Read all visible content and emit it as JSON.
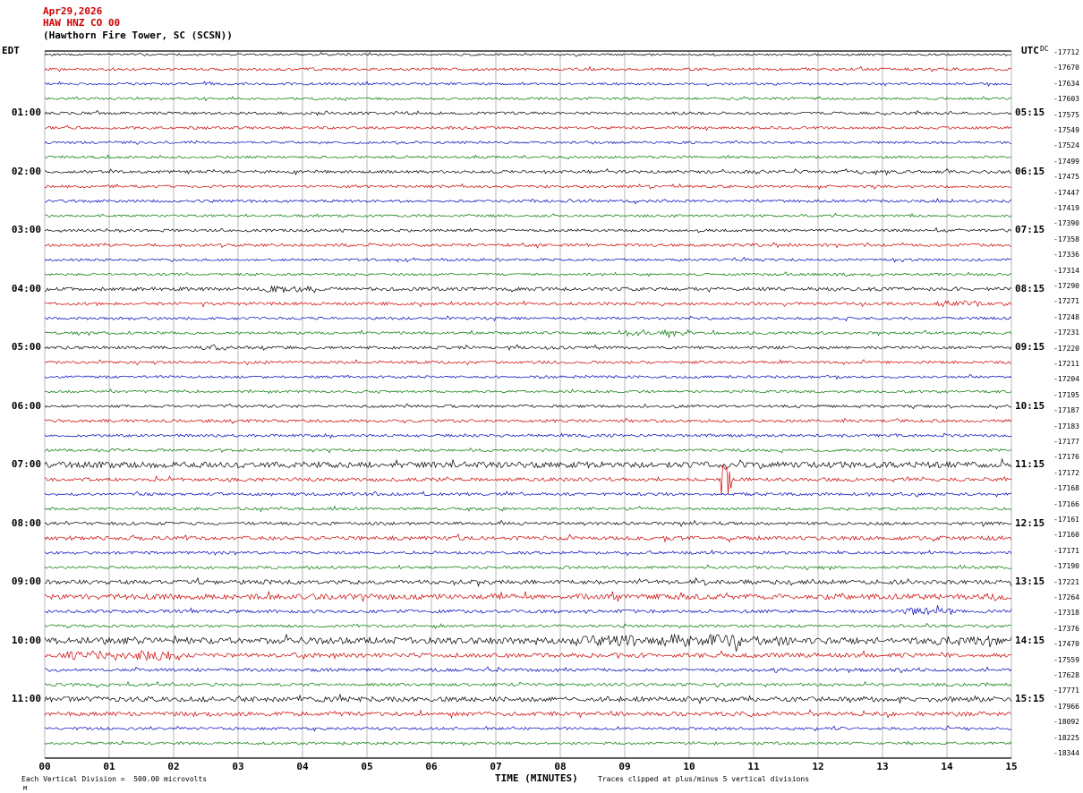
{
  "header": {
    "date": "Apr29,2026",
    "station": "HAW HNZ CO 00",
    "location": "(Hawthorn Fire Tower, SC (SCSN))"
  },
  "axes": {
    "left_tz": "EDT",
    "right_tz": "UTC",
    "right_col_header": "DC",
    "x_label": "TIME (MINUTES)"
  },
  "footer": {
    "left": "Each Vertical Division =  500.00 microvolts",
    "right": "Traces clipped at plus/minus 5 vertical divisions",
    "corner_mark": "M"
  },
  "chart_data": {
    "type": "line",
    "subtype": "helicorder-seismogram",
    "title": "HAW HNZ CO 00 (Hawthorn Fire Tower, SC (SCSN)) Apr29,2026",
    "xlabel": "TIME (MINUTES)",
    "x_range_minutes": [
      0,
      15
    ],
    "x_ticks": [
      "00",
      "01",
      "02",
      "03",
      "04",
      "05",
      "06",
      "07",
      "08",
      "09",
      "10",
      "11",
      "12",
      "13",
      "14",
      "15"
    ],
    "minutes_per_row": 15,
    "rows": 48,
    "grid": true,
    "trace_colors_cycle": [
      "#000000",
      "#cc0000",
      "#0000bb",
      "#007700"
    ],
    "left_hour_labels": [
      "01:00",
      "02:00",
      "03:00",
      "04:00",
      "05:00",
      "06:00",
      "07:00",
      "08:00",
      "09:00",
      "10:00",
      "11:00"
    ],
    "right_hour_labels": [
      "05:15",
      "06:15",
      "07:15",
      "08:15",
      "09:15",
      "10:15",
      "11:15",
      "12:15",
      "13:15",
      "14:15",
      "15:15"
    ],
    "right_dc_values": [
      "-17712",
      "-17670",
      "-17634",
      "-17603",
      "-17575",
      "-17549",
      "-17524",
      "-17499",
      "-17475",
      "-17447",
      "-17419",
      "-17390",
      "-17358",
      "-17336",
      "-17314",
      "-17290",
      "-17271",
      "-17248",
      "-17231",
      "-17220",
      "-17211",
      "-17204",
      "-17195",
      "-17187",
      "-17183",
      "-17177",
      "-17176",
      "-17172",
      "-17168",
      "-17166",
      "-17161",
      "-17160",
      "-17171",
      "-17190",
      "-17221",
      "-17264",
      "-17318",
      "-17376",
      "-17470",
      "-17559",
      "-17628",
      "-17771",
      "-17966",
      "-18092",
      "-18225",
      "-18344"
    ],
    "amplitudes": [
      0.8,
      1.0,
      0.9,
      0.9,
      1.0,
      1.0,
      0.9,
      0.9,
      1.1,
      1.0,
      1.0,
      0.9,
      1.0,
      1.1,
      0.9,
      0.9,
      1.3,
      1.1,
      1.0,
      1.0,
      1.1,
      1.0,
      0.9,
      0.9,
      1.0,
      1.1,
      1.0,
      1.0,
      2.2,
      1.3,
      1.1,
      1.0,
      1.1,
      1.5,
      1.0,
      1.0,
      1.6,
      2.0,
      1.2,
      1.0,
      2.4,
      1.6,
      1.2,
      1.1,
      1.8,
      1.5,
      1.0,
      1.0
    ],
    "events": [
      {
        "row": 16,
        "start": 0.23,
        "end": 0.28,
        "amp": 2.6
      },
      {
        "row": 17,
        "start": 0.92,
        "end": 0.97,
        "amp": 2.2
      },
      {
        "row": 19,
        "start": 0.6,
        "end": 0.67,
        "amp": 2.4
      },
      {
        "row": 20,
        "start": 0.16,
        "end": 0.2,
        "amp": 2.2
      },
      {
        "row": 29,
        "start": 0.7,
        "end": 0.71,
        "amp": 15
      },
      {
        "row": 38,
        "start": 0.89,
        "end": 0.94,
        "amp": 2.6
      },
      {
        "row": 40,
        "start": 0.55,
        "end": 0.61,
        "amp": 4.0
      },
      {
        "row": 40,
        "start": 0.63,
        "end": 0.72,
        "amp": 4.6
      },
      {
        "row": 40,
        "start": 0.73,
        "end": 0.77,
        "amp": 3.6
      },
      {
        "row": 40,
        "start": 0.92,
        "end": 0.99,
        "amp": 3.4
      },
      {
        "row": 41,
        "start": 0.02,
        "end": 0.14,
        "amp": 3.6
      }
    ],
    "notes": "Traces are ambient seismic noise; clipped at plus/minus 5 vertical divisions; each vertical division = 500.00 microvolts"
  }
}
